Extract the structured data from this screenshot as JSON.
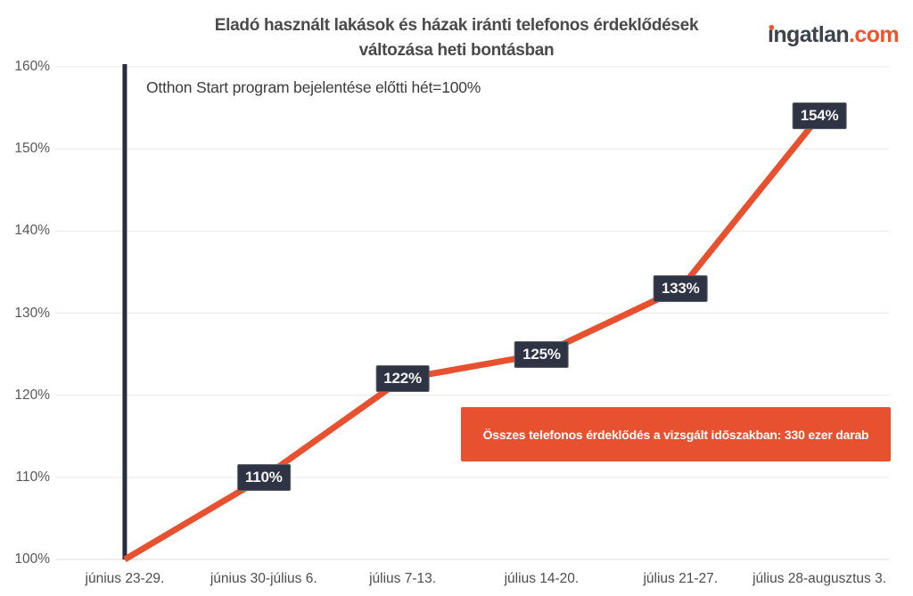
{
  "page": {
    "title_line1": "Eladó használt lakások és házak iránti telefonos érdeklődések",
    "title_line2": "változása heti bontásban",
    "brand": {
      "name": "ingatlan",
      "tld": ".com"
    },
    "annotation": "Otthon Start program bejelentése előtti hét=100%",
    "banner": "Összes telefonos érdeklődés a vizsgált időszakban: 330 ezer darab"
  },
  "colors": {
    "line": "#e8512f",
    "banner_bg": "#e8512f",
    "label_box_bg": "#2e3443",
    "label_box_border": "#5a5f6a",
    "marker_line": "#262d3d",
    "brand_dark": "#3d434d",
    "brand_orange": "#f4512c",
    "grid": "#e8e8e8",
    "axis": "#d9d9d9",
    "title_text": "#4a4a4a",
    "background": "#ffffff"
  },
  "chart_data": {
    "type": "line",
    "title": "Eladó használt lakások és házak iránti telefonos érdeklődések változása heti bontásban",
    "categories": [
      "június 23-29.",
      "június 30-július 6.",
      "július 7-13.",
      "július 14-20.",
      "július 21-27.",
      "július 28-augusztus 3."
    ],
    "values": [
      100,
      110,
      122,
      125,
      133,
      154
    ],
    "unit": "%",
    "xlabel": "",
    "ylabel": "",
    "ylim": [
      100,
      160
    ],
    "yticks": [
      "100%",
      "110%",
      "120%",
      "130%",
      "140%",
      "150%",
      "160%"
    ],
    "grid": "horizontal",
    "legend": "none",
    "series_color": "#e8512f",
    "data_labels": [
      "110%",
      "122%",
      "125%",
      "133%",
      "154%"
    ],
    "reference_line": {
      "orientation": "vertical",
      "at_category": "június 23-29.",
      "color": "#262d3d",
      "label": "Otthon Start program bejelentése előtti hét=100%"
    },
    "annotation": "Otthon Start program bejelentése előtti hét=100%",
    "banner": "Összes telefonos érdeklődés a vizsgált időszakban: 330 ezer darab"
  }
}
